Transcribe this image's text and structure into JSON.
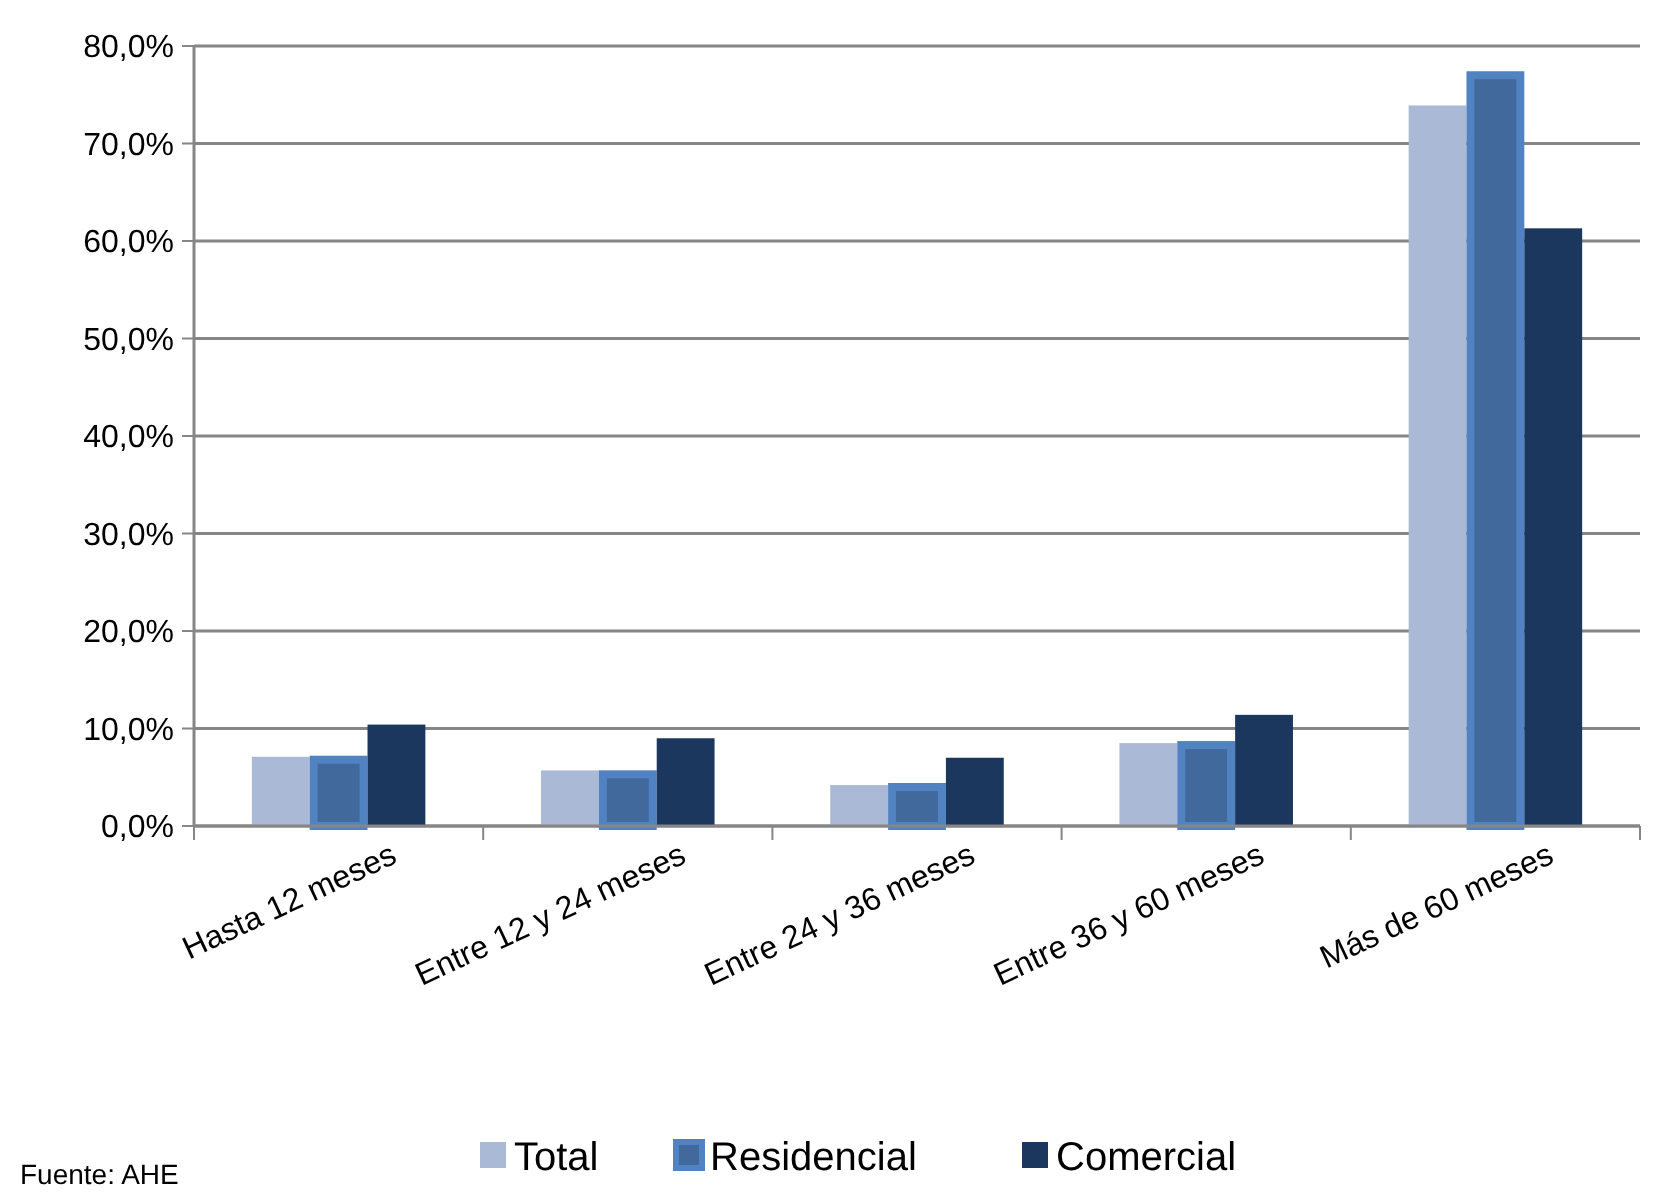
{
  "chart_data": {
    "type": "bar",
    "categories": [
      "Hasta 12 meses",
      "Entre 12 y 24 meses",
      "Entre 24 y 36 meses",
      "Entre 36 y 60 meses",
      "Más de 60 meses"
    ],
    "series": [
      {
        "name": "Total",
        "color": "#a9b9d6",
        "values": [
          7.1,
          5.7,
          4.2,
          8.5,
          73.9
        ]
      },
      {
        "name": "Residencial",
        "color": "#41699c",
        "values": [
          6.8,
          5.3,
          4.0,
          8.3,
          77.0
        ]
      },
      {
        "name": "Comercial",
        "color": "#1b375e",
        "values": [
          10.4,
          9.0,
          7.0,
          11.4,
          61.3
        ]
      }
    ],
    "ylim": [
      0,
      80
    ],
    "yticks": [
      {
        "value": 0,
        "label": "0,0%"
      },
      {
        "value": 10,
        "label": "10,0%"
      },
      {
        "value": 20,
        "label": "20,0%"
      },
      {
        "value": 30,
        "label": "30,0%"
      },
      {
        "value": 40,
        "label": "40,0%"
      },
      {
        "value": 50,
        "label": "50,0%"
      },
      {
        "value": 60,
        "label": "60,0%"
      },
      {
        "value": 70,
        "label": "70,0%"
      },
      {
        "value": 80,
        "label": "80,0%"
      }
    ],
    "grid": "y",
    "legend": "bottom",
    "annotations": [
      "Fuente: AHE"
    ]
  }
}
